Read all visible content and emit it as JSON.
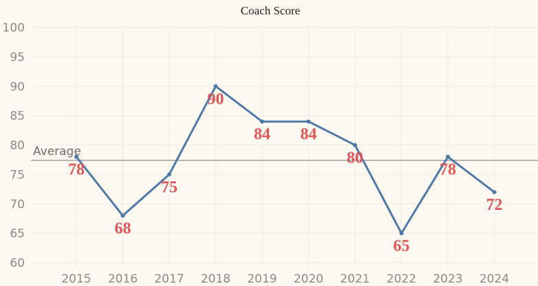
{
  "title": "Coach Score",
  "colors": {
    "background": "#fdf8f0",
    "line": "#4e79a7",
    "label": "#e15759",
    "reference": "#a0a0a0"
  },
  "chart_data": {
    "type": "line",
    "title": "Coach Score",
    "xlabel": "",
    "ylabel": "",
    "x": [
      "2015",
      "2016",
      "2017",
      "2018",
      "2019",
      "2020",
      "2021",
      "2022",
      "2023",
      "2024"
    ],
    "series": [
      {
        "values": [
          78,
          68,
          75,
          90,
          84,
          84,
          80,
          65,
          78,
          72
        ]
      }
    ],
    "data_labels": [
      "78",
      "68",
      "75",
      "90",
      "84",
      "84",
      "80",
      "65",
      "78",
      "72"
    ],
    "ylim": [
      60,
      100
    ],
    "yticks": [
      "60",
      "65",
      "70",
      "75",
      "80",
      "85",
      "90",
      "95",
      "100"
    ],
    "reference_line": {
      "label": "Average",
      "value": 77.4
    },
    "grid": true,
    "legend": "none"
  }
}
